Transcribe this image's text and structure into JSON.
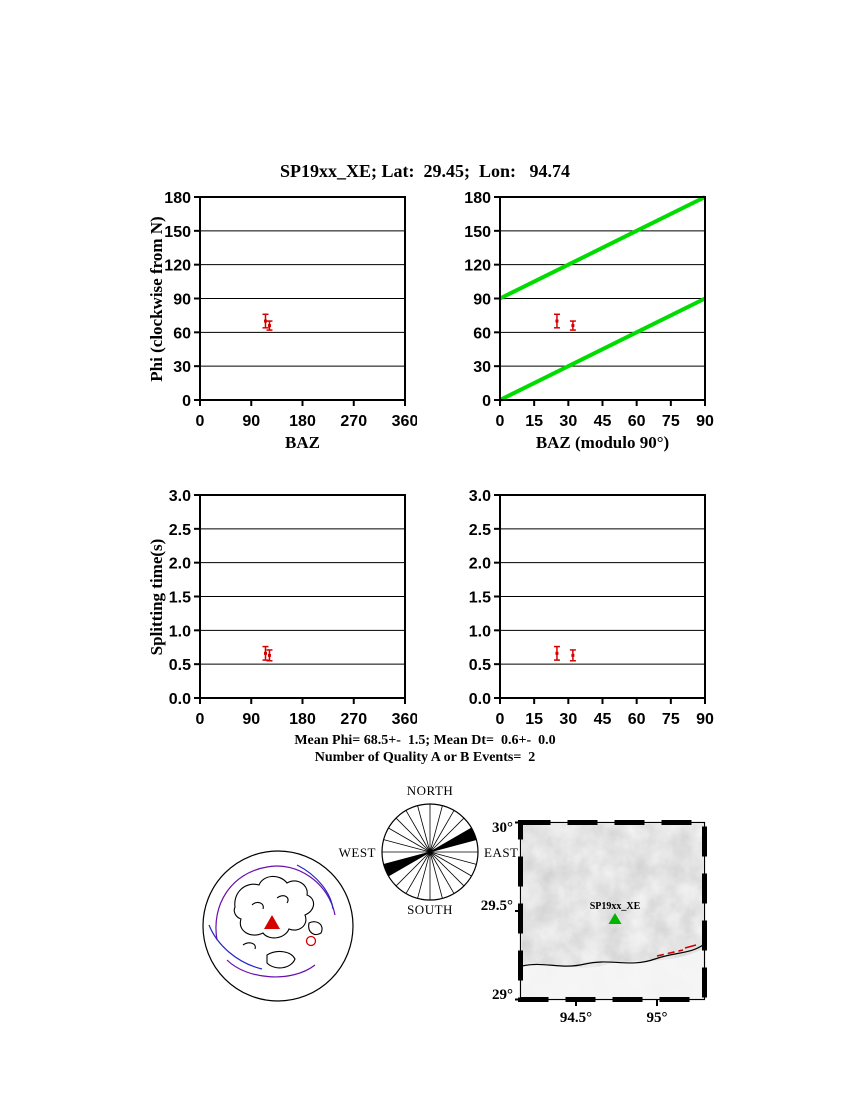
{
  "title": "SP19xx_XE; Lat:  29.45;  Lon:   94.74",
  "stats": {
    "line1": "Mean Phi= 68.5+-  1.5; Mean Dt=  0.6+-  0.0",
    "line2": "Number of Quality A or B Events=  2"
  },
  "chart_data": [
    {
      "id": "phi-baz",
      "type": "scatter",
      "xlabel": "BAZ",
      "ylabel": "Phi (clockwise from N)",
      "xlim": [
        0,
        360
      ],
      "xticks": [
        0,
        90,
        180,
        270,
        360
      ],
      "xtick_labels": [
        "0",
        "90",
        "180",
        "270",
        "360"
      ],
      "ylim": [
        0,
        180
      ],
      "yticks": [
        0,
        30,
        60,
        90,
        120,
        150,
        180
      ],
      "ytick_labels": [
        "0",
        "30",
        "60",
        "90",
        "120",
        "150",
        "180"
      ],
      "grid": "horizontal",
      "point_color": "#d40000",
      "points": [
        {
          "x": 115,
          "y": 70,
          "yerr": 6
        },
        {
          "x": 122,
          "y": 66,
          "yerr": 4
        }
      ]
    },
    {
      "id": "phi-baz-mod90",
      "type": "scatter",
      "xlabel": "BAZ (modulo 90°)",
      "ylabel": "",
      "xlim": [
        0,
        90
      ],
      "xticks": [
        0,
        15,
        30,
        45,
        60,
        75,
        90
      ],
      "xtick_labels": [
        "0",
        "15",
        "30",
        "45",
        "60",
        "75",
        "90"
      ],
      "ylim": [
        0,
        180
      ],
      "yticks": [
        0,
        30,
        60,
        90,
        120,
        150,
        180
      ],
      "ytick_labels": [
        "0",
        "30",
        "60",
        "90",
        "120",
        "150",
        "180"
      ],
      "grid": "horizontal",
      "ref_color": "#00dc00",
      "ref_lines": [
        {
          "x": [
            0,
            90
          ],
          "y": [
            0,
            90
          ]
        },
        {
          "x": [
            0,
            90
          ],
          "y": [
            90,
            180
          ]
        }
      ],
      "point_color": "#d40000",
      "points": [
        {
          "x": 25,
          "y": 70,
          "yerr": 6
        },
        {
          "x": 32,
          "y": 66,
          "yerr": 4
        }
      ]
    },
    {
      "id": "dt-baz",
      "type": "scatter",
      "xlabel": "",
      "ylabel": "Splitting time(s)",
      "xlim": [
        0,
        360
      ],
      "xticks": [
        0,
        90,
        180,
        270,
        360
      ],
      "xtick_labels": [
        "0",
        "90",
        "180",
        "270",
        "360"
      ],
      "ylim": [
        0,
        3
      ],
      "yticks": [
        0,
        0.5,
        1,
        1.5,
        2,
        2.5,
        3
      ],
      "ytick_labels": [
        "0.0",
        "0.5",
        "1.0",
        "1.5",
        "2.0",
        "2.5",
        "3.0"
      ],
      "grid": "horizontal",
      "point_color": "#d40000",
      "points": [
        {
          "x": 115,
          "y": 0.66,
          "yerr": 0.1
        },
        {
          "x": 122,
          "y": 0.63,
          "yerr": 0.08
        }
      ]
    },
    {
      "id": "dt-baz-mod90",
      "type": "scatter",
      "xlabel": "",
      "ylabel": "",
      "xlim": [
        0,
        90
      ],
      "xticks": [
        0,
        15,
        30,
        45,
        60,
        75,
        90
      ],
      "xtick_labels": [
        "0",
        "15",
        "30",
        "45",
        "60",
        "75",
        "90"
      ],
      "ylim": [
        0,
        3
      ],
      "yticks": [
        0,
        0.5,
        1,
        1.5,
        2,
        2.5,
        3
      ],
      "ytick_labels": [
        "0.0",
        "0.5",
        "1.0",
        "1.5",
        "2.0",
        "2.5",
        "3.0"
      ],
      "grid": "horizontal",
      "point_color": "#d40000",
      "points": [
        {
          "x": 25,
          "y": 0.66,
          "yerr": 0.1
        },
        {
          "x": 32,
          "y": 0.63,
          "yerr": 0.08
        }
      ]
    }
  ],
  "rose": {
    "labels": {
      "north": "NORTH",
      "south": "SOUTH",
      "east": "EAST",
      "west": "WEST"
    },
    "spoke_step_deg": 15,
    "filled_sectors_deg": [
      [
        60,
        75
      ],
      [
        240,
        255
      ]
    ],
    "fill_color": "#000000"
  },
  "globe": {
    "coast_color": "#000000",
    "plate_boundary_color_1": "#6a0dad",
    "plate_boundary_color_2": "#2424c8",
    "station_color": "#d40000"
  },
  "map": {
    "lat_labels": [
      "30°",
      "29.5°",
      "29°"
    ],
    "lon_labels": [
      "94.5°",
      "95°"
    ],
    "station": {
      "label": "SP19xx_XE",
      "color": "#00b400"
    },
    "fault_color": "#d40000"
  }
}
